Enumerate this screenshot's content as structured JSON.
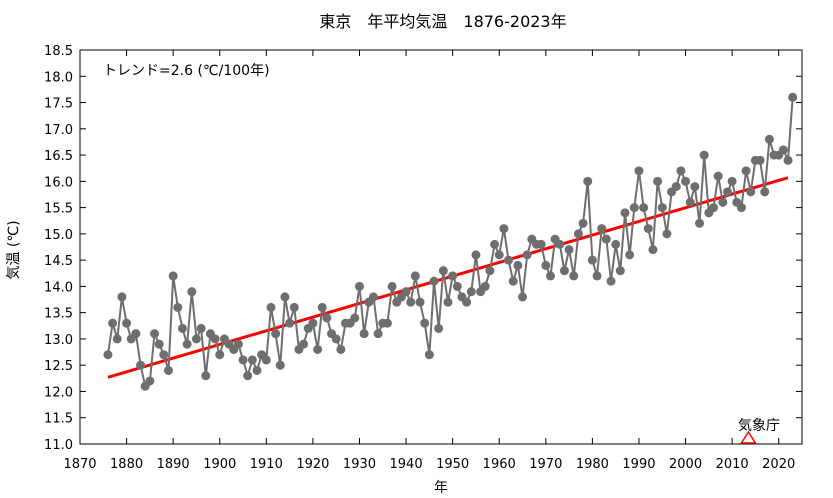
{
  "chart_data": {
    "type": "line",
    "title": "東京　年平均気温　1876-2023年",
    "xlabel": "年",
    "ylabel": "気温 (℃)",
    "xlim": [
      1870,
      2025
    ],
    "ylim": [
      11.0,
      18.5
    ],
    "x_ticks": [
      1870,
      1880,
      1890,
      1900,
      1910,
      1920,
      1930,
      1940,
      1950,
      1960,
      1970,
      1980,
      1990,
      2000,
      2010,
      2020
    ],
    "y_ticks": [
      11.0,
      11.5,
      12.0,
      12.5,
      13.0,
      13.5,
      14.0,
      14.5,
      15.0,
      15.5,
      16.0,
      16.5,
      17.0,
      17.5,
      18.0,
      18.5
    ],
    "annotation": "トレンド=2.6 (℃/100年)",
    "source_label": "気象庁",
    "grid": false,
    "colors": {
      "series": "#6e6e6e",
      "trend": "#ff0000",
      "marker_source": "#ff0000"
    },
    "series": [
      {
        "x": [
          1876,
          1877,
          1878,
          1879,
          1880,
          1881,
          1882,
          1883,
          1884,
          1885,
          1886,
          1887,
          1888,
          1889,
          1890,
          1891,
          1892,
          1893,
          1894,
          1895,
          1896,
          1897,
          1898,
          1899,
          1900,
          1901,
          1902,
          1903,
          1904,
          1905,
          1906,
          1907,
          1908,
          1909,
          1910,
          1911,
          1912,
          1913,
          1914,
          1915,
          1916,
          1917,
          1918,
          1919,
          1920,
          1921,
          1922,
          1923,
          1924,
          1925,
          1926,
          1927,
          1928,
          1929,
          1930,
          1931,
          1932,
          1933,
          1934,
          1935,
          1936,
          1937,
          1938,
          1939,
          1940,
          1941,
          1942,
          1943,
          1944,
          1945,
          1946,
          1947,
          1948,
          1949,
          1950,
          1951,
          1952,
          1953,
          1954,
          1955,
          1956,
          1957,
          1958,
          1959,
          1960,
          1961,
          1962,
          1963,
          1964,
          1965,
          1966,
          1967,
          1968,
          1969,
          1970,
          1971,
          1972,
          1973,
          1974,
          1975,
          1976,
          1977,
          1978,
          1979,
          1980,
          1981,
          1982,
          1983,
          1984,
          1985,
          1986,
          1987,
          1988,
          1989,
          1990,
          1991,
          1992,
          1993,
          1994,
          1995,
          1996,
          1997,
          1998,
          1999,
          2000,
          2001,
          2002,
          2003,
          2004,
          2005,
          2006,
          2007,
          2008,
          2009,
          2010,
          2011,
          2012,
          2013,
          2014,
          2015,
          2016,
          2017,
          2018,
          2019,
          2020,
          2021,
          2022,
          2023
        ],
        "y": [
          12.7,
          13.3,
          13.0,
          13.8,
          13.3,
          13.0,
          13.1,
          12.5,
          12.1,
          12.2,
          13.1,
          12.9,
          12.7,
          12.4,
          14.2,
          13.6,
          13.2,
          12.9,
          13.9,
          13.0,
          13.2,
          12.3,
          13.1,
          13.0,
          12.7,
          13.0,
          12.9,
          12.8,
          12.9,
          12.6,
          12.3,
          12.6,
          12.4,
          12.7,
          12.6,
          13.6,
          13.1,
          12.5,
          13.8,
          13.3,
          13.6,
          12.8,
          12.9,
          13.2,
          13.3,
          12.8,
          13.6,
          13.4,
          13.1,
          13.0,
          12.8,
          13.3,
          13.3,
          13.4,
          14.0,
          13.1,
          13.7,
          13.8,
          13.1,
          13.3,
          13.3,
          14.0,
          13.7,
          13.8,
          13.9,
          13.7,
          14.2,
          13.7,
          13.3,
          12.7,
          14.1,
          13.2,
          14.3,
          13.7,
          14.2,
          14.0,
          13.8,
          13.7,
          13.9,
          14.6,
          13.9,
          14.0,
          14.3,
          14.8,
          14.6,
          15.1,
          14.5,
          14.1,
          14.4,
          13.8,
          14.6,
          14.9,
          14.8,
          14.8,
          14.4,
          14.2,
          14.9,
          14.8,
          14.3,
          14.7,
          14.2,
          15.0,
          15.2,
          16.0,
          14.5,
          14.2,
          15.1,
          14.9,
          14.1,
          14.8,
          14.3,
          15.4,
          14.6,
          15.5,
          16.2,
          15.5,
          15.1,
          14.7,
          16.0,
          15.5,
          15.0,
          15.8,
          15.9,
          16.2,
          16.0,
          15.6,
          15.9,
          15.2,
          16.5,
          15.4,
          15.5,
          16.1,
          15.6,
          15.8,
          16.0,
          15.6,
          15.5,
          16.2,
          15.8,
          16.4,
          16.4,
          15.8,
          16.8,
          16.5,
          16.5,
          16.6,
          16.4,
          17.6
        ]
      }
    ],
    "trend": {
      "x": [
        1876,
        2022
      ],
      "y": [
        12.27,
        16.07
      ]
    }
  }
}
